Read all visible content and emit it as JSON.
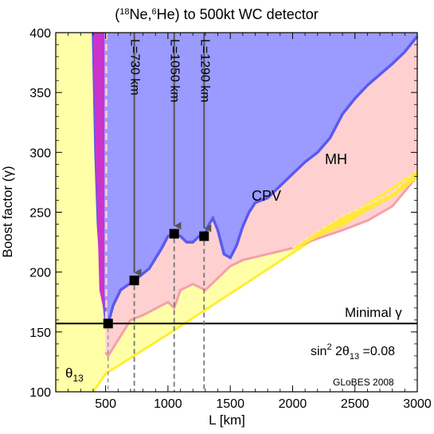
{
  "chart_data": {
    "type": "area",
    "title_parts": {
      "open": "(",
      "sup1": "18",
      "mid1": "Ne,",
      "sup2": "6",
      "mid2": "He) to 500kt WC detector"
    },
    "xlabel": "L [km]",
    "ylabel": "Boost factor (γ)",
    "xlim": [
      100,
      3000
    ],
    "ylim": [
      100,
      400
    ],
    "xticks": [
      500,
      1000,
      1500,
      2000,
      2500,
      3000
    ],
    "yticks": [
      100,
      150,
      200,
      250,
      300,
      350,
      400
    ],
    "regions": [
      {
        "label": "θ",
        "label_sub": "13",
        "color": "#ffffa8",
        "boundary": [
          [
            100,
            400
          ],
          [
            100,
            100
          ],
          [
            400,
            100
          ],
          [
            500,
            115
          ],
          [
            1000,
            148
          ],
          [
            1500,
            182
          ],
          [
            2000,
            216
          ],
          [
            2500,
            250
          ],
          [
            3000,
            284
          ],
          [
            3000,
            400
          ]
        ]
      },
      {
        "label": "MH",
        "color": "#ffd0d0",
        "boundary": [
          [
            500,
            133
          ],
          [
            520,
            130
          ],
          [
            700,
            160
          ],
          [
            800,
            164
          ],
          [
            1000,
            175
          ],
          [
            1050,
            170
          ],
          [
            1100,
            185
          ],
          [
            1200,
            190
          ],
          [
            1300,
            185
          ],
          [
            1500,
            205
          ],
          [
            1600,
            210
          ],
          [
            1800,
            215
          ],
          [
            2000,
            220
          ],
          [
            2200,
            228
          ],
          [
            2400,
            235
          ],
          [
            2600,
            243
          ],
          [
            2800,
            255
          ],
          [
            3000,
            280
          ]
        ]
      },
      {
        "label": "CPV",
        "color": "#9a9aff",
        "boundary": [
          [
            400,
            400
          ],
          [
            420,
            300
          ],
          [
            440,
            240
          ],
          [
            480,
            180
          ],
          [
            500,
            160
          ],
          [
            520,
            157
          ],
          [
            560,
            172
          ],
          [
            620,
            185
          ],
          [
            730,
            193
          ],
          [
            850,
            203
          ],
          [
            950,
            220
          ],
          [
            1000,
            230
          ],
          [
            1050,
            232
          ],
          [
            1100,
            230
          ],
          [
            1150,
            225
          ],
          [
            1200,
            225
          ],
          [
            1250,
            230
          ],
          [
            1290,
            230
          ],
          [
            1330,
            240
          ],
          [
            1360,
            245
          ],
          [
            1400,
            235
          ],
          [
            1450,
            215
          ],
          [
            1500,
            212
          ],
          [
            1550,
            222
          ],
          [
            1600,
            238
          ],
          [
            1650,
            250
          ],
          [
            1700,
            258
          ],
          [
            1800,
            262
          ],
          [
            1900,
            272
          ],
          [
            2000,
            282
          ],
          [
            2100,
            292
          ],
          [
            2200,
            300
          ],
          [
            2300,
            312
          ],
          [
            2400,
            332
          ],
          [
            2500,
            345
          ],
          [
            2600,
            356
          ],
          [
            2700,
            365
          ],
          [
            2800,
            374
          ],
          [
            2900,
            384
          ],
          [
            3000,
            397
          ]
        ]
      },
      {
        "color": "#ffe83a",
        "boundary": [
          [
            2000,
            220
          ],
          [
            2200,
            234
          ],
          [
            2400,
            247
          ],
          [
            2600,
            256
          ],
          [
            2800,
            266
          ],
          [
            3000,
            286
          ],
          [
            3000,
            278
          ],
          [
            2800,
            262
          ],
          [
            2600,
            251
          ],
          [
            2400,
            238
          ],
          [
            2200,
            229
          ],
          [
            2000,
            218
          ]
        ]
      },
      {
        "color": "#cc33cc",
        "boundary": [
          [
            400,
            400
          ],
          [
            490,
            400
          ],
          [
            490,
            165
          ],
          [
            450,
            185
          ],
          [
            420,
            300
          ]
        ]
      }
    ],
    "reference_line": {
      "label": "Minimal γ",
      "y": 157
    },
    "baselines": [
      {
        "label": "L=730 km",
        "x": 730,
        "y": 193
      },
      {
        "label": "L=1050 km",
        "x": 1050,
        "y": 232
      },
      {
        "label": "L=1290 km",
        "x": 1290,
        "y": 230
      }
    ],
    "min_point": {
      "x": 520,
      "y": 157
    },
    "annotation": {
      "prefix": "sin",
      "sup": "2",
      "mid": " 2θ",
      "sub": "13",
      "suffix": " =0.08"
    },
    "credit": "GLoBES 2008"
  }
}
